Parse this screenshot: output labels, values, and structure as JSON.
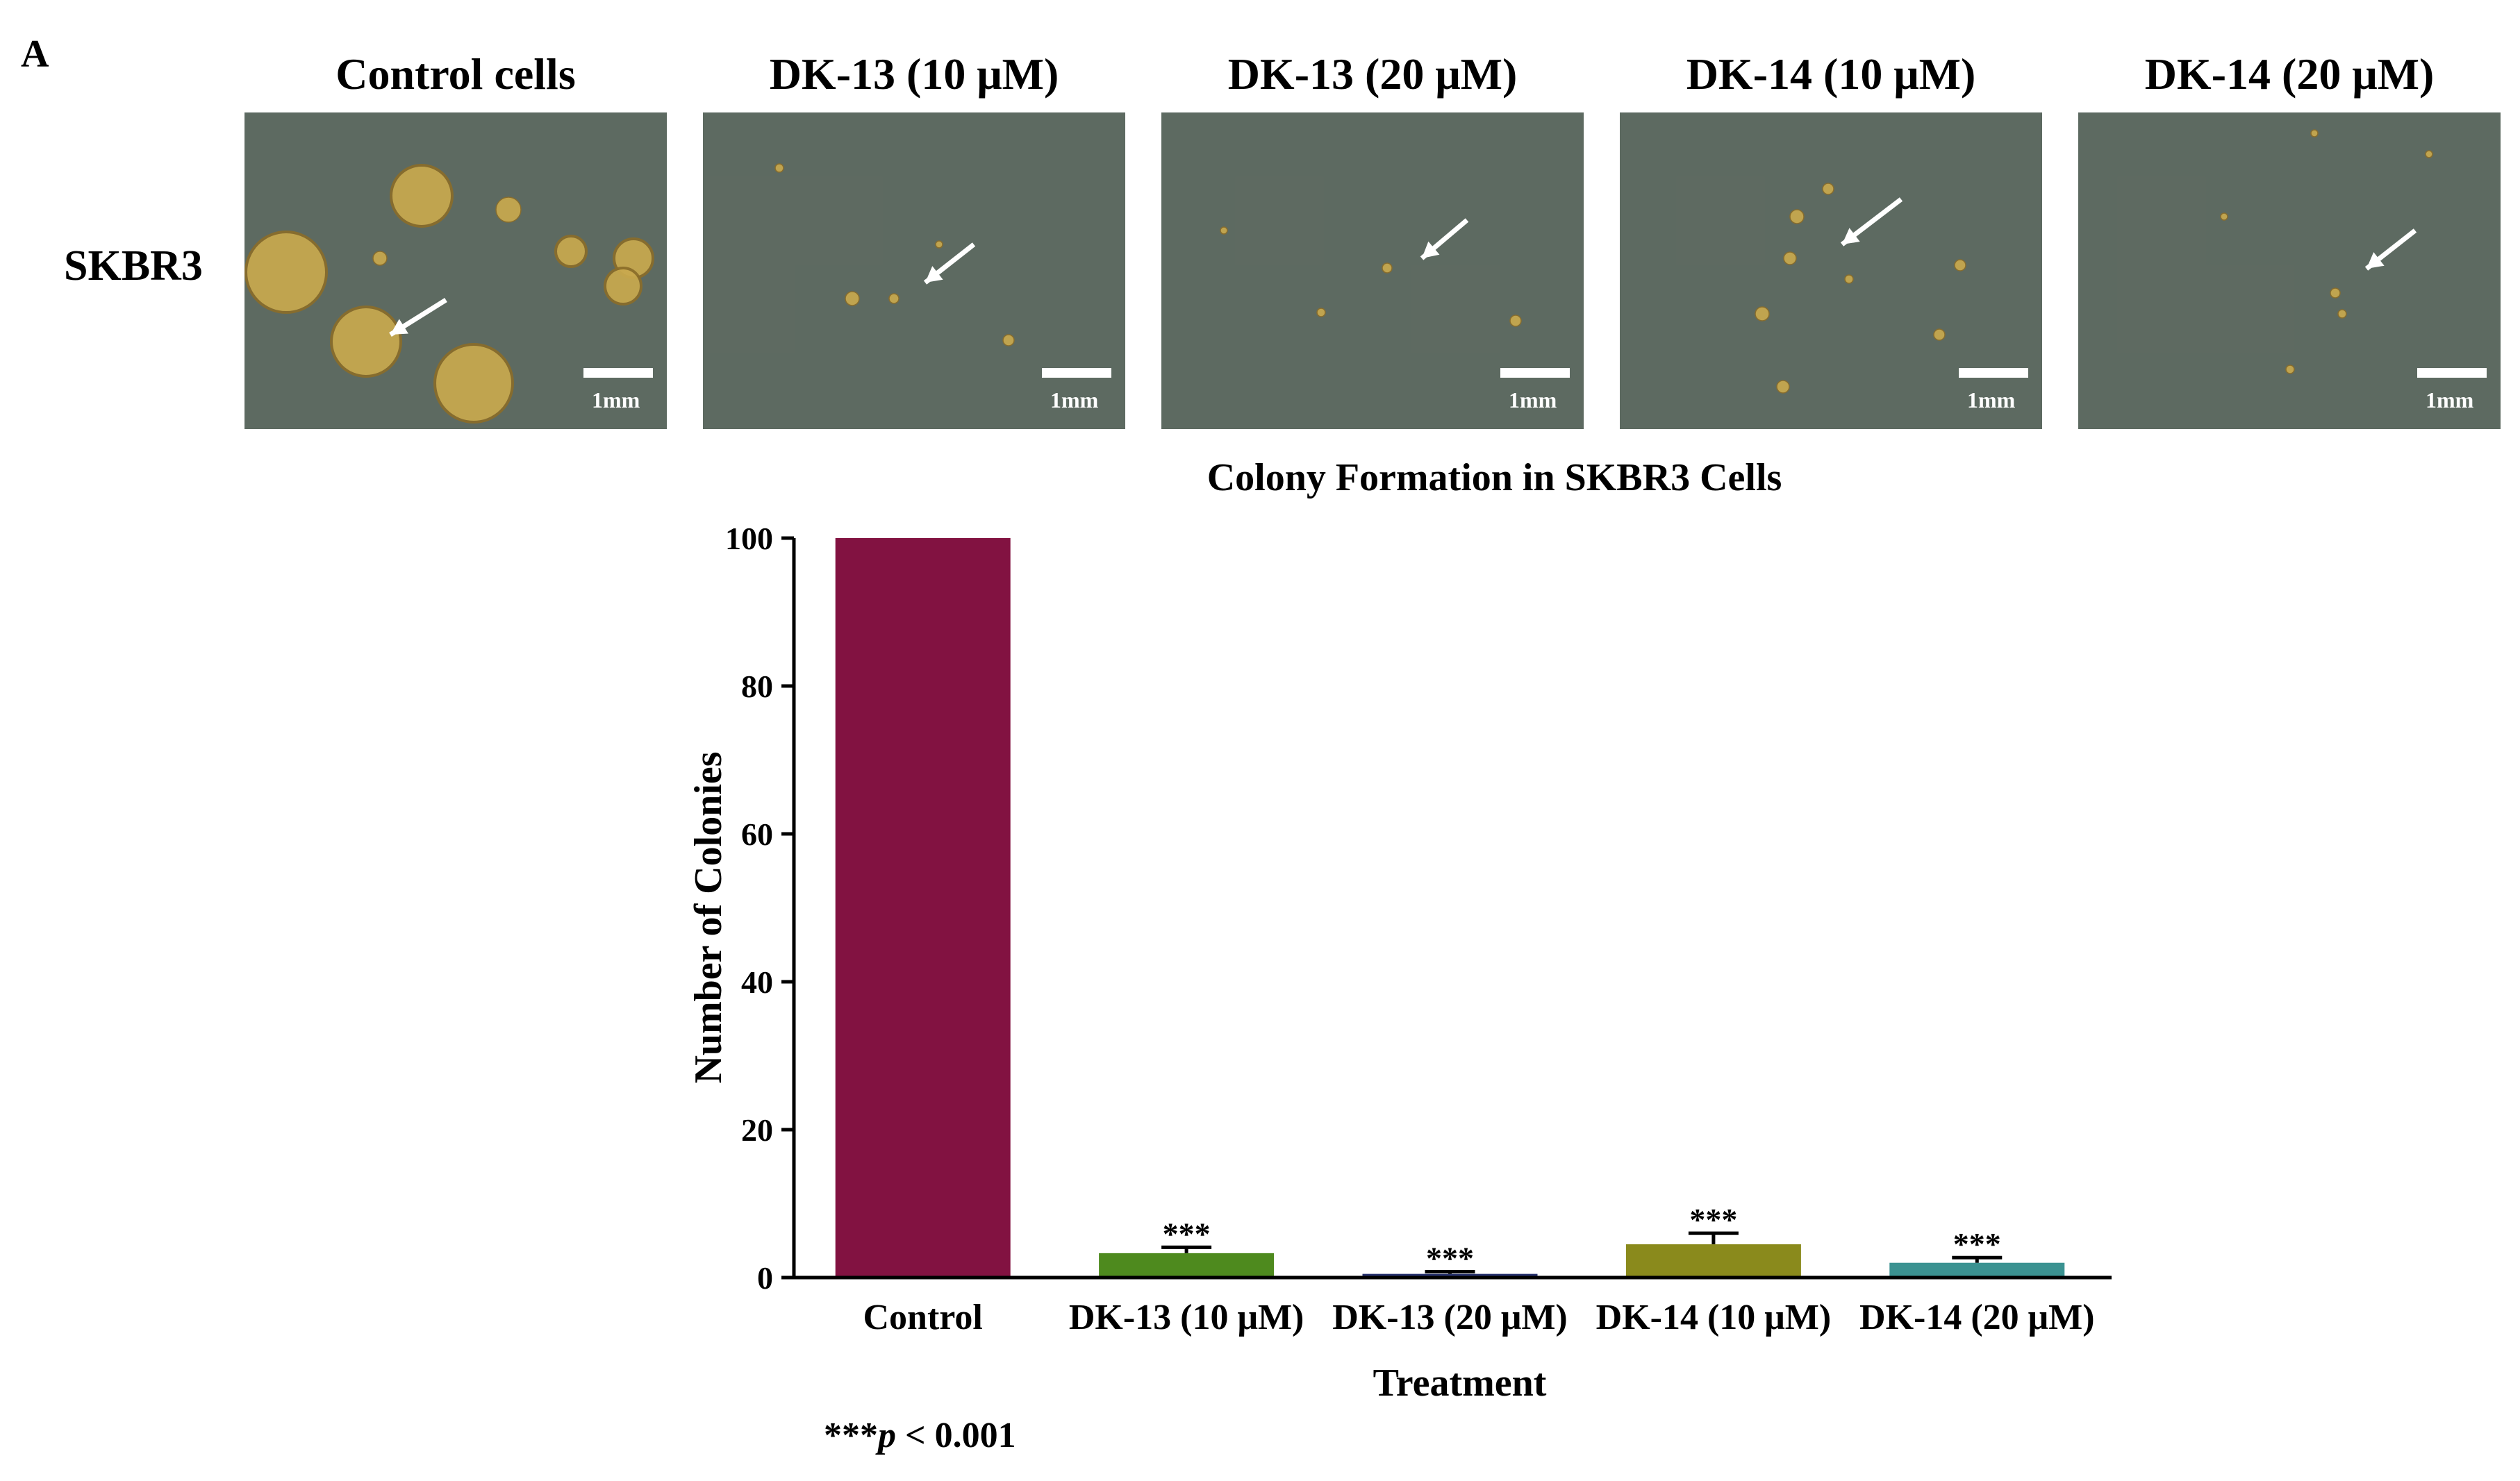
{
  "panel_letter": "A",
  "row_label": "SKBR3",
  "scale_bar_label": "1mm",
  "micrographs": [
    {
      "title": "Control cells"
    },
    {
      "title": "DK-13 (10 μM)"
    },
    {
      "title": "DK-13 (20 μM)"
    },
    {
      "title": "DK-14 (10 μM)"
    },
    {
      "title": "DK-14 (20 μM)"
    }
  ],
  "footnote": {
    "stars": "***",
    "p": "p",
    "rest": " < 0.001"
  },
  "colors": {
    "control": "#821241",
    "dk13_10": "#4e8a1e",
    "dk13_20": "#27326e",
    "dk14_10": "#8a8a1c",
    "dk14_20": "#3b9291",
    "micro_bg": "#55625c",
    "colony": "#c9a94e"
  },
  "chart_data": {
    "type": "bar",
    "title": "Colony Formation in SKBR3 Cells",
    "xlabel": "Treatment",
    "ylabel": "Number of Colonies",
    "ylim": [
      0,
      100
    ],
    "yticks": [
      0,
      20,
      40,
      60,
      80,
      100
    ],
    "grid": false,
    "categories": [
      "Control",
      "DK-13 (10 μM)",
      "DK-13 (20 μM)",
      "DK-14 (10 μM)",
      "DK-14 (20 μM)"
    ],
    "values": [
      100,
      3.3,
      0.5,
      4.5,
      2.0
    ],
    "errors": [
      0,
      0.8,
      0.3,
      1.5,
      0.7
    ],
    "annotations": [
      "",
      "***",
      "***",
      "***",
      "***"
    ]
  }
}
